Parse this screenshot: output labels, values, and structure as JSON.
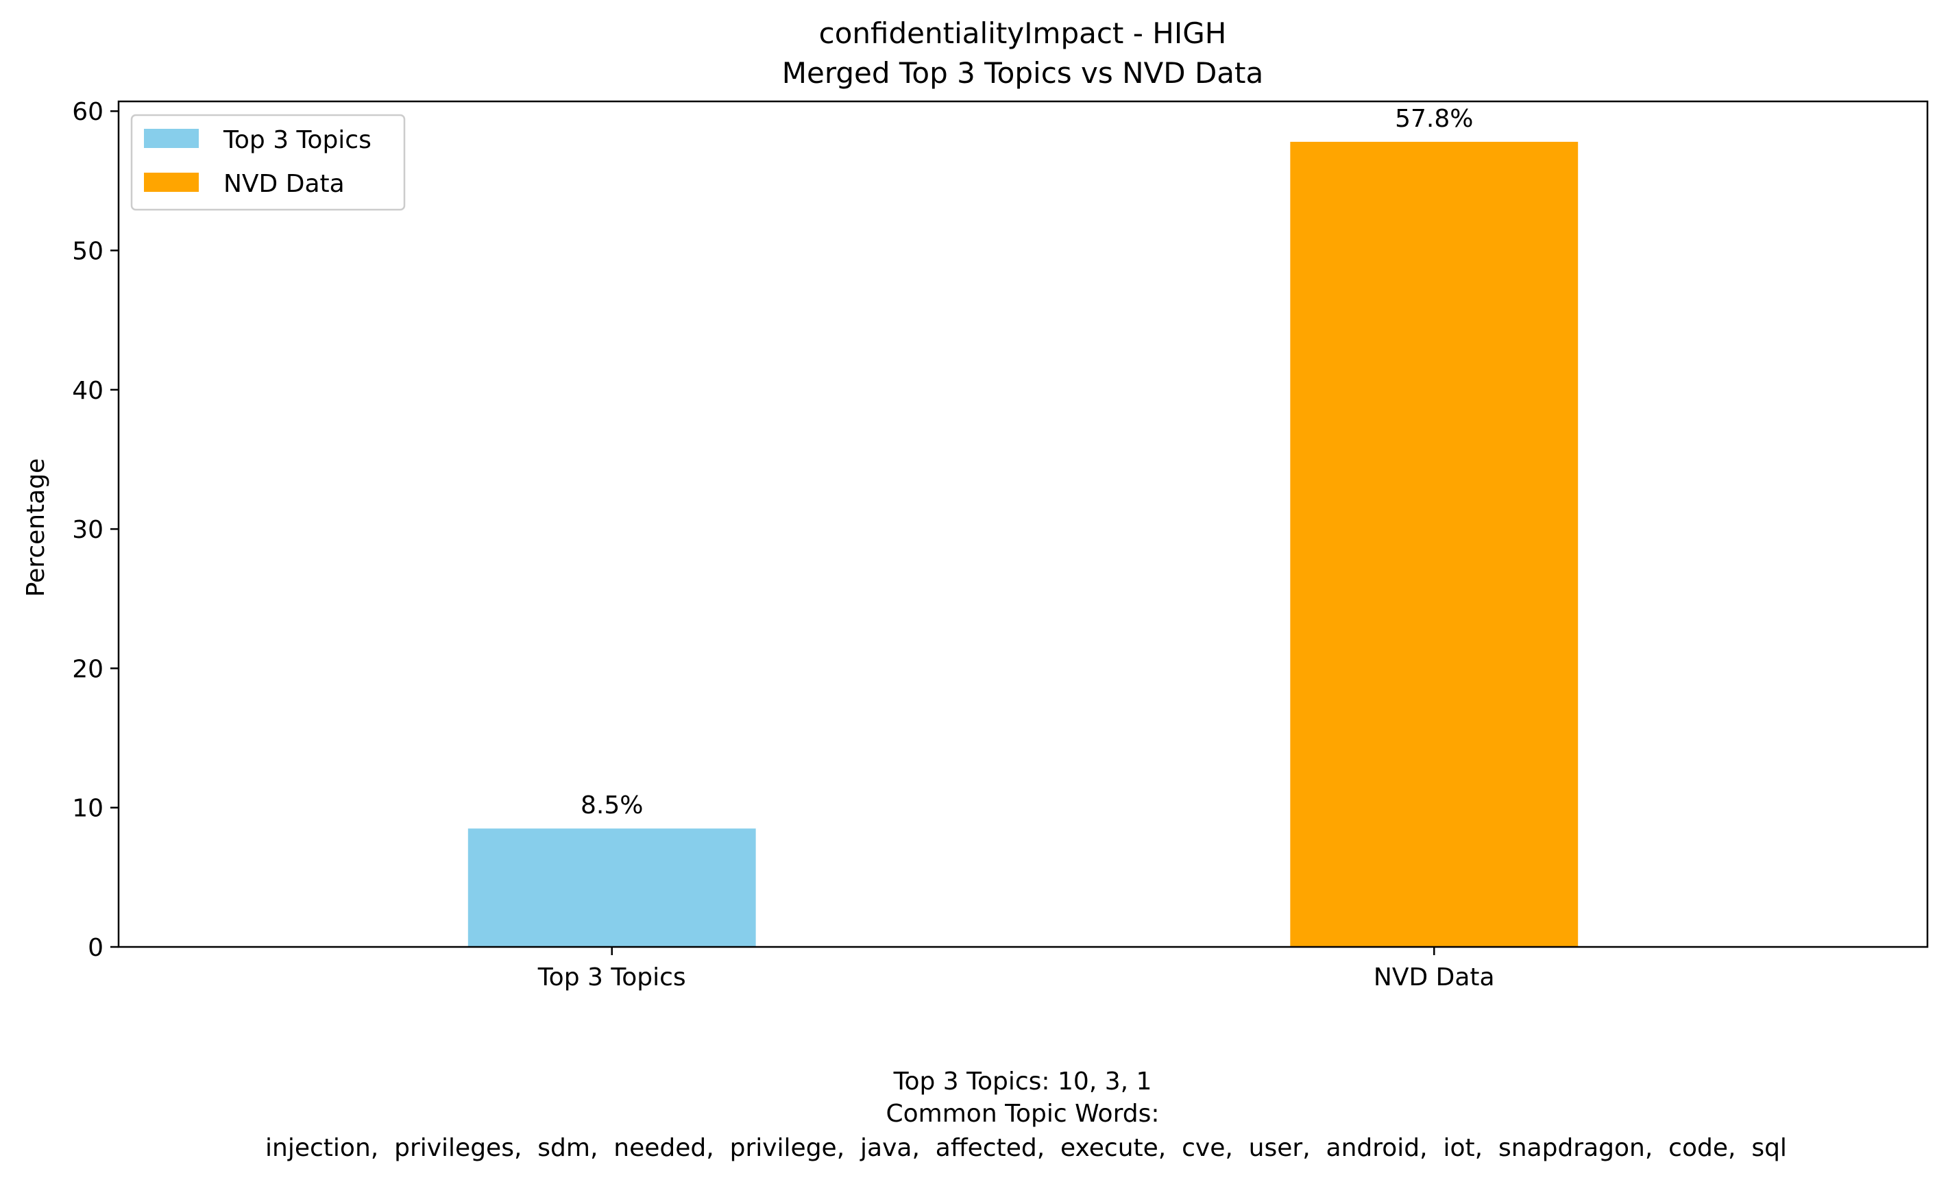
{
  "chart_data": {
    "type": "bar",
    "title": "confidentialityImpact - HIGH",
    "subtitle": "Merged Top 3 Topics vs NVD Data",
    "xlabel": "",
    "ylabel": "Percentage",
    "categories": [
      "Top 3 Topics",
      "NVD Data"
    ],
    "values": [
      8.5,
      57.8
    ],
    "value_labels": [
      "8.5%",
      "57.8%"
    ],
    "colors": [
      "#87CEEB",
      "#FFA500"
    ],
    "ylim": [
      0,
      60.7
    ],
    "yticks": [
      0,
      10,
      20,
      30,
      40,
      50,
      60
    ],
    "grid": false,
    "legend": {
      "placement": "top-left",
      "entries": [
        {
          "label": "Top 3 Topics",
          "color": "#87CEEB"
        },
        {
          "label": "NVD Data",
          "color": "#FFA500"
        }
      ]
    },
    "footer": {
      "line1": "Top 3 Topics: 10, 3, 1",
      "line2": "Common Topic Words:",
      "line3": "injection,  privileges,  sdm,  needed,  privilege,  java,  affected,  execute,  cve,  user,  android,  iot,  snapdragon,  code,  sql"
    }
  }
}
